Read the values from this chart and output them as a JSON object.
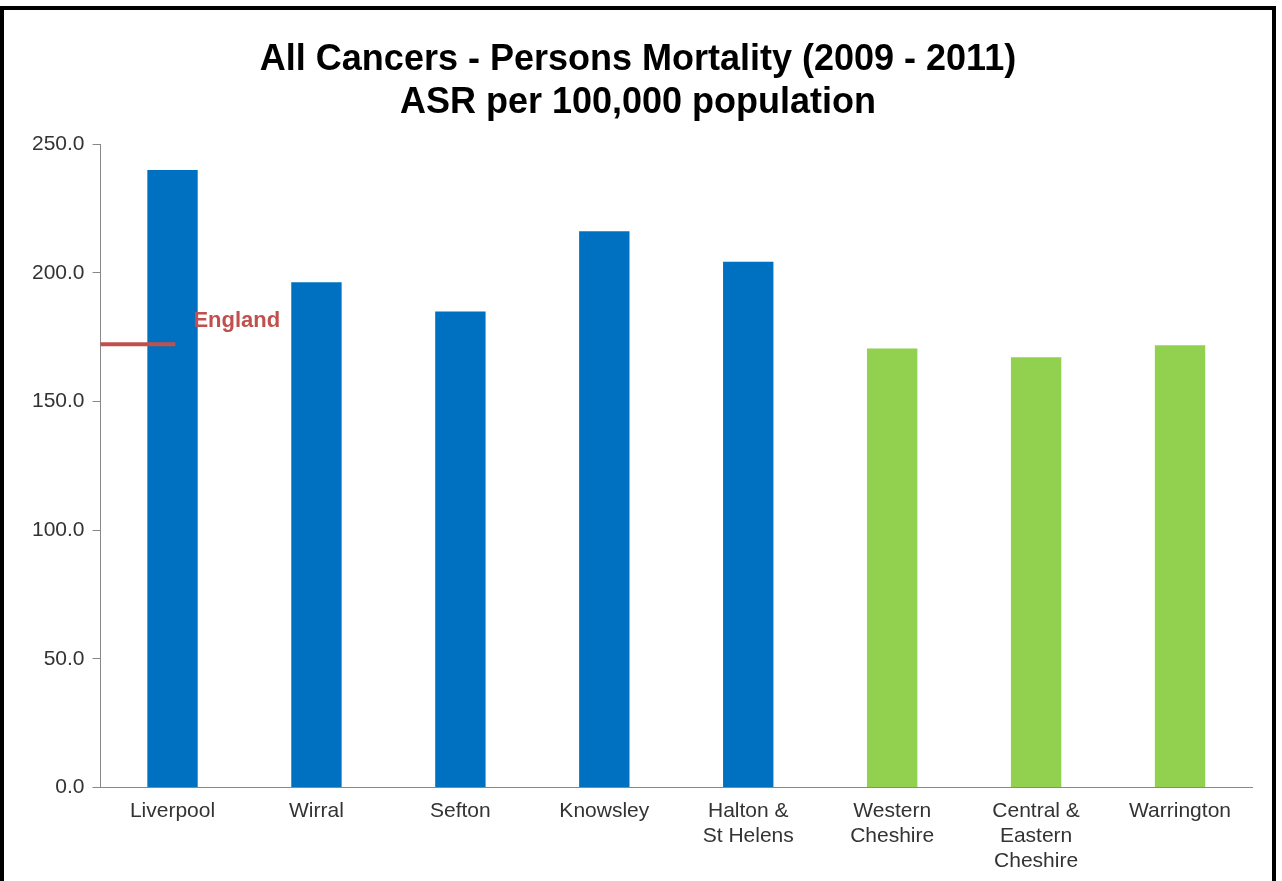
{
  "chart_data": {
    "type": "bar",
    "title": "All Cancers - Persons Mortality (2009 - 2011)\nASR per 100,000 population",
    "categories": [
      "Liverpool",
      "Wirral",
      "Sefton",
      "Knowsley",
      "Halton & St Helens",
      "Western Cheshire",
      "Central & Eastern Cheshire",
      "Warrington"
    ],
    "values": [
      240,
      196.4,
      185,
      216.2,
      204.4,
      170.6,
      167.2,
      171.9
    ],
    "colors": [
      "#0070c0",
      "#0070c0",
      "#0070c0",
      "#0070c0",
      "#0070c0",
      "#92d050",
      "#92d050",
      "#92d050"
    ],
    "ylim": [
      0,
      250
    ],
    "yticks": [
      {
        "value": 0,
        "label": "0.0"
      },
      {
        "value": 50,
        "label": "50.0"
      },
      {
        "value": 100,
        "label": "100.0"
      },
      {
        "value": 150,
        "label": "150.0"
      },
      {
        "value": 200,
        "label": "200.0"
      },
      {
        "value": 250,
        "label": "250.0"
      }
    ],
    "ref_lines": [
      {
        "axis": "y",
        "value": 172.3,
        "label": "England",
        "color": "#c0504d"
      }
    ],
    "grid": false,
    "legend": false
  }
}
